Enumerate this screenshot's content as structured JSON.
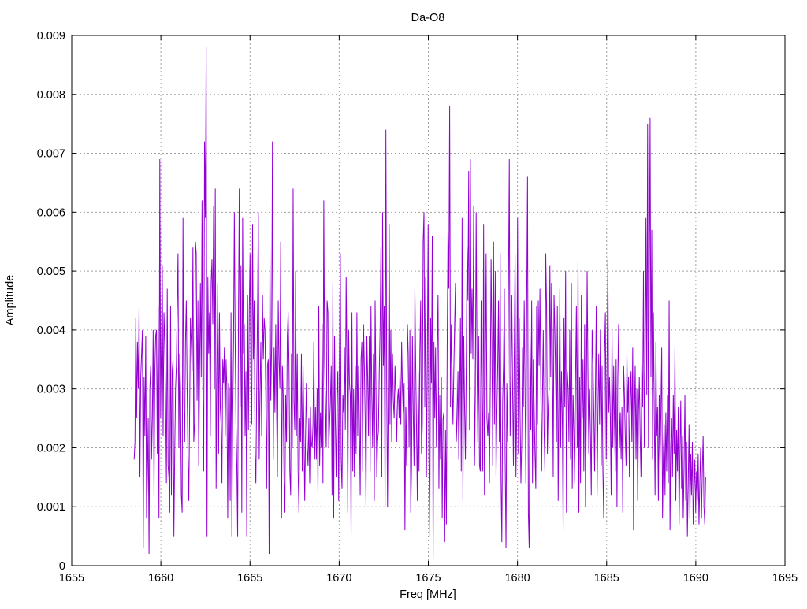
{
  "chart_data": {
    "type": "line",
    "title": "Da-O8",
    "xlabel": "Freq [MHz]",
    "ylabel": "Amplitude",
    "xlim": [
      1655,
      1695
    ],
    "ylim": [
      0,
      0.009
    ],
    "x_ticks": [
      1655,
      1660,
      1665,
      1670,
      1675,
      1680,
      1685,
      1690,
      1695
    ],
    "x_tick_labels": [
      "1655",
      "1660",
      "1665",
      "1670",
      "1675",
      "1680",
      "1685",
      "1690",
      "1695"
    ],
    "y_ticks": [
      0,
      0.001,
      0.002,
      0.003,
      0.004,
      0.005,
      0.006,
      0.007,
      0.008,
      0.009
    ],
    "y_tick_labels": [
      "0",
      "0.001",
      "0.002",
      "0.003",
      "0.004",
      "0.005",
      "0.006",
      "0.007",
      "0.008",
      "0.009"
    ],
    "grid": true,
    "series_color": "#9400d3",
    "x_step": 0.05,
    "series": [
      {
        "x_start": 1658.5,
        "x_end": 1690.55,
        "values": [
          0.0018,
          0.0021,
          0.0042,
          0.0025,
          0.0038,
          0.003,
          0.0044,
          0.0015,
          0.0032,
          0.0036,
          0.004,
          0.0003,
          0.0032,
          0.0022,
          0.0039,
          0.0008,
          0.0015,
          0.0025,
          0.0002,
          0.003,
          0.0034,
          0.0018,
          0.0025,
          0.004,
          0.0012,
          0.0033,
          0.0039,
          0.004,
          0.0019,
          0.0044,
          0.0008,
          0.0069,
          0.0025,
          0.0038,
          0.0051,
          0.0022,
          0.0043,
          0.0038,
          0.0028,
          0.0014,
          0.0047,
          0.0017,
          0.0015,
          0.0009,
          0.0044,
          0.0012,
          0.0033,
          0.0035,
          0.0005,
          0.0019,
          0.003,
          0.0034,
          0.0044,
          0.0053,
          0.002,
          0.0036,
          0.003,
          0.0012,
          0.0009,
          0.0059,
          0.0028,
          0.0021,
          0.0038,
          0.0045,
          0.003,
          0.0019,
          0.0011,
          0.0026,
          0.0042,
          0.0038,
          0.0033,
          0.0054,
          0.0021,
          0.0024,
          0.0055,
          0.0053,
          0.0028,
          0.0045,
          0.0017,
          0.0032,
          0.0048,
          0.0032,
          0.0062,
          0.003,
          0.0016,
          0.0072,
          0.0059,
          0.0088,
          0.0005,
          0.0049,
          0.0036,
          0.0043,
          0.0022,
          0.0048,
          0.0052,
          0.0041,
          0.0061,
          0.003,
          0.0064,
          0.0013,
          0.0033,
          0.0048,
          0.0019,
          0.0043,
          0.0027,
          0.0024,
          0.0014,
          0.0035,
          0.0031,
          0.0037,
          0.0022,
          0.0035,
          0.003,
          0.0008,
          0.0031,
          0.003,
          0.0011,
          0.0043,
          0.0005,
          0.0025,
          0.0037,
          0.006,
          0.0038,
          0.0024,
          0.0017,
          0.0005,
          0.0043,
          0.0064,
          0.0027,
          0.0051,
          0.0009,
          0.0059,
          0.0036,
          0.0041,
          0.0022,
          0.0033,
          0.0005,
          0.0046,
          0.0023,
          0.0043,
          0.0053,
          0.0032,
          0.0024,
          0.0058,
          0.0035,
          0.0045,
          0.0019,
          0.0014,
          0.003,
          0.0043,
          0.006,
          0.0018,
          0.0029,
          0.0038,
          0.0022,
          0.0046,
          0.0035,
          0.0042,
          0.004,
          0.0029,
          0.0013,
          0.0034,
          0.0035,
          0.0002,
          0.0054,
          0.0028,
          0.0037,
          0.0072,
          0.0018,
          0.0037,
          0.0026,
          0.0041,
          0.0027,
          0.0015,
          0.0045,
          0.0035,
          0.003,
          0.0055,
          0.0008,
          0.0034,
          0.0029,
          0.0015,
          0.0009,
          0.0029,
          0.0021,
          0.0039,
          0.0043,
          0.0034,
          0.0016,
          0.0012,
          0.0036,
          0.002,
          0.0064,
          0.0028,
          0.0023,
          0.005,
          0.0022,
          0.0036,
          0.0016,
          0.0009,
          0.0025,
          0.0021,
          0.0036,
          0.0016,
          0.0034,
          0.0023,
          0.0011,
          0.0022,
          0.0031,
          0.002,
          0.0017,
          0.0025,
          0.0014,
          0.0027,
          0.0021,
          0.002,
          0.0024,
          0.0038,
          0.0018,
          0.0027,
          0.0018,
          0.003,
          0.0012,
          0.0044,
          0.0017,
          0.0026,
          0.002,
          0.0041,
          0.0014,
          0.0062,
          0.0035,
          0.0027,
          0.002,
          0.0045,
          0.0043,
          0.002,
          0.0024,
          0.0028,
          0.0034,
          0.0012,
          0.0048,
          0.0008,
          0.0039,
          0.0024,
          0.0015,
          0.0029,
          0.0033,
          0.0011,
          0.0037,
          0.0053,
          0.0018,
          0.0013,
          0.0029,
          0.0026,
          0.0037,
          0.0023,
          0.0049,
          0.0035,
          0.0009,
          0.004,
          0.0031,
          0.0029,
          0.0005,
          0.0043,
          0.0016,
          0.003,
          0.0015,
          0.0034,
          0.0019,
          0.0043,
          0.0022,
          0.0034,
          0.0024,
          0.0012,
          0.0035,
          0.0038,
          0.0016,
          0.0041,
          0.0034,
          0.0025,
          0.001,
          0.0039,
          0.0032,
          0.0022,
          0.0039,
          0.0016,
          0.0044,
          0.0029,
          0.002,
          0.0036,
          0.0011,
          0.0045,
          0.003,
          0.0015,
          0.0021,
          0.0023,
          0.0033,
          0.004,
          0.0054,
          0.0015,
          0.006,
          0.0034,
          0.0044,
          0.001,
          0.0074,
          0.0031,
          0.001,
          0.0031,
          0.0058,
          0.0024,
          0.004,
          0.0021,
          0.0036,
          0.0028,
          0.0025,
          0.0034,
          0.0029,
          0.0021,
          0.0028,
          0.003,
          0.0025,
          0.0033,
          0.0024,
          0.0038,
          0.003,
          0.0026,
          0.0031,
          0.0006,
          0.0027,
          0.0017,
          0.0041,
          0.0036,
          0.002,
          0.004,
          0.0009,
          0.0017,
          0.0039,
          0.0026,
          0.0017,
          0.0047,
          0.0034,
          0.0023,
          0.0011,
          0.0033,
          0.0016,
          0.0036,
          0.0045,
          0.0019,
          0.0024,
          0.0055,
          0.006,
          0.0027,
          0.0049,
          0.0015,
          0.0034,
          0.0058,
          0.0018,
          0.0005,
          0.0042,
          0.0031,
          0.0056,
          0.0001,
          0.0038,
          0.0025,
          0.0037,
          0.002,
          0.0037,
          0.0046,
          0.0013,
          0.0029,
          0.0018,
          0.0032,
          0.0008,
          0.0025,
          0.0026,
          0.0004,
          0.0023,
          0.0007,
          0.0037,
          0.0057,
          0.0047,
          0.0078,
          0.0027,
          0.0041,
          0.0032,
          0.0024,
          0.0033,
          0.0041,
          0.0048,
          0.0021,
          0.0025,
          0.0033,
          0.0018,
          0.0028,
          0.0042,
          0.0016,
          0.0059,
          0.0011,
          0.0039,
          0.0027,
          0.0018,
          0.0033,
          0.0054,
          0.0045,
          0.0067,
          0.0023,
          0.0069,
          0.0036,
          0.0047,
          0.0035,
          0.0061,
          0.0017,
          0.0029,
          0.006,
          0.0035,
          0.0021,
          0.0039,
          0.0017,
          0.0016,
          0.0045,
          0.0029,
          0.0016,
          0.0058,
          0.0012,
          0.0032,
          0.0053,
          0.0025,
          0.0022,
          0.0026,
          0.0014,
          0.003,
          0.0052,
          0.0038,
          0.0017,
          0.0055,
          0.0024,
          0.005,
          0.0015,
          0.0026,
          0.0034,
          0.0045,
          0.0021,
          0.0053,
          0.0015,
          0.0004,
          0.0028,
          0.0034,
          0.0047,
          0.0018,
          0.0003,
          0.0031,
          0.0021,
          0.0047,
          0.0069,
          0.0022,
          0.0031,
          0.0046,
          0.003,
          0.0017,
          0.0036,
          0.0053,
          0.0015,
          0.0026,
          0.0059,
          0.0019,
          0.0042,
          0.0026,
          0.0014,
          0.0021,
          0.0037,
          0.0027,
          0.0045,
          0.003,
          0.0014,
          0.0044,
          0.0066,
          0.0009,
          0.0003,
          0.0039,
          0.0023,
          0.0045,
          0.0014,
          0.0035,
          0.0027,
          0.0019,
          0.0013,
          0.0044,
          0.0024,
          0.0045,
          0.0034,
          0.0047,
          0.0031,
          0.0016,
          0.0028,
          0.004,
          0.0023,
          0.0016,
          0.0053,
          0.0044,
          0.0019,
          0.0027,
          0.003,
          0.0051,
          0.0032,
          0.0048,
          0.0039,
          0.0015,
          0.0046,
          0.004,
          0.0031,
          0.0021,
          0.0044,
          0.0011,
          0.0029,
          0.0047,
          0.002,
          0.0033,
          0.0025,
          0.0006,
          0.0042,
          0.0027,
          0.005,
          0.0009,
          0.0033,
          0.003,
          0.0021,
          0.004,
          0.0018,
          0.0048,
          0.0013,
          0.0029,
          0.0023,
          0.0014,
          0.0032,
          0.0044,
          0.002,
          0.0052,
          0.0009,
          0.0032,
          0.0014,
          0.0046,
          0.0025,
          0.0035,
          0.0016,
          0.0041,
          0.001,
          0.0026,
          0.005,
          0.0032,
          0.0019,
          0.003,
          0.0022,
          0.0012,
          0.004,
          0.0035,
          0.0026,
          0.0016,
          0.003,
          0.0044,
          0.0012,
          0.0026,
          0.0036,
          0.0024,
          0.004,
          0.0017,
          0.0034,
          0.0016,
          0.0008,
          0.0036,
          0.0043,
          0.0018,
          0.0033,
          0.0052,
          0.0026,
          0.0032,
          0.0025,
          0.0012,
          0.004,
          0.002,
          0.0034,
          0.0024,
          0.0016,
          0.0035,
          0.001,
          0.0032,
          0.0041,
          0.002,
          0.0026,
          0.0018,
          0.0027,
          0.0009,
          0.0034,
          0.0029,
          0.0022,
          0.0017,
          0.0036,
          0.0026,
          0.0032,
          0.0015,
          0.0028,
          0.0033,
          0.0021,
          0.0037,
          0.0006,
          0.0025,
          0.0034,
          0.0018,
          0.003,
          0.0011,
          0.0026,
          0.0032,
          0.0022,
          0.0015,
          0.0034,
          0.0027,
          0.005,
          0.002,
          0.0035,
          0.0059,
          0.0029,
          0.0075,
          0.002,
          0.0048,
          0.0076,
          0.0032,
          0.0057,
          0.0018,
          0.0043,
          0.0026,
          0.0012,
          0.0038,
          0.0022,
          0.0027,
          0.0011,
          0.0029,
          0.0017,
          0.0026,
          0.0037,
          0.0008,
          0.0019,
          0.0024,
          0.0012,
          0.0026,
          0.0016,
          0.0029,
          0.0014,
          0.0045,
          0.0006,
          0.002,
          0.0025,
          0.0015,
          0.0029,
          0.0019,
          0.0037,
          0.0011,
          0.0023,
          0.0016,
          0.0027,
          0.0007,
          0.0019,
          0.0028,
          0.0013,
          0.0022,
          0.0008,
          0.0017,
          0.0029,
          0.0011,
          0.0021,
          0.0005,
          0.0014,
          0.0024,
          0.0008,
          0.0019,
          0.0012,
          0.0021,
          0.0007,
          0.0013,
          0.0018,
          0.0009,
          0.0016,
          0.0011,
          0.0019,
          0.0007,
          0.0014,
          0.002,
          0.0008,
          0.0016,
          0.0022,
          0.001,
          0.0007,
          0.0015
        ]
      }
    ]
  }
}
